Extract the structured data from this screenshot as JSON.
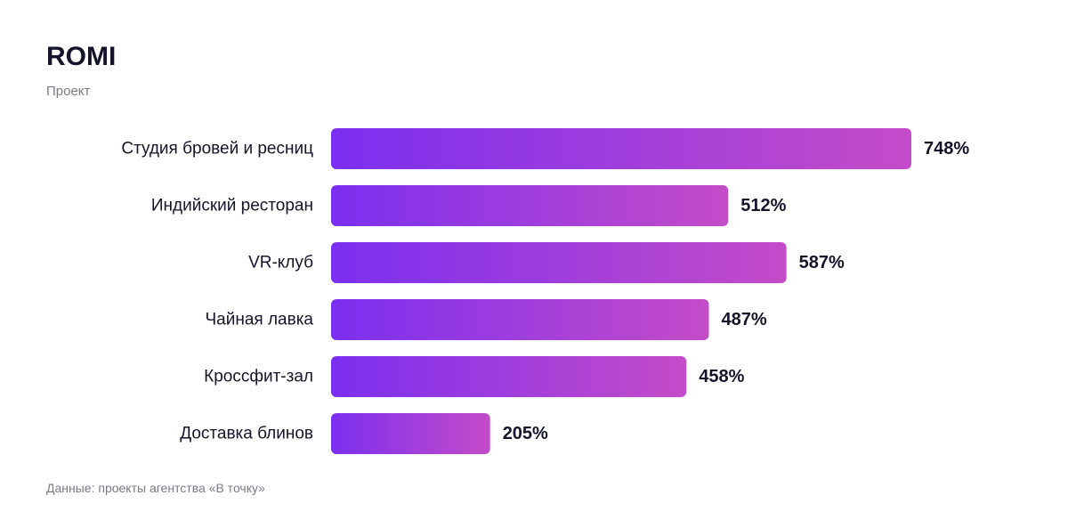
{
  "chart_data": {
    "type": "bar",
    "orientation": "horizontal",
    "title": "ROMI",
    "subtitle": "Проект",
    "source": "Данные: проекты агентства «В точку»",
    "categories": [
      "Студия бровей и ресниц",
      "Индийский ресторан",
      "VR-клуб",
      "Чайная лавка",
      "Кроссфит-зал",
      "Доставка блинов"
    ],
    "values": [
      748,
      512,
      587,
      487,
      458,
      205
    ],
    "value_labels": [
      "748%",
      "512%",
      "587%",
      "487%",
      "458%",
      "205%"
    ],
    "unit": "%",
    "xlim": [
      0,
      748
    ],
    "grid": false,
    "legend": "none",
    "colors": {
      "gradient_start": "#7b2ff0",
      "gradient_end": "#c44cc8",
      "text": "#14142b",
      "muted": "#7a7a86"
    }
  }
}
